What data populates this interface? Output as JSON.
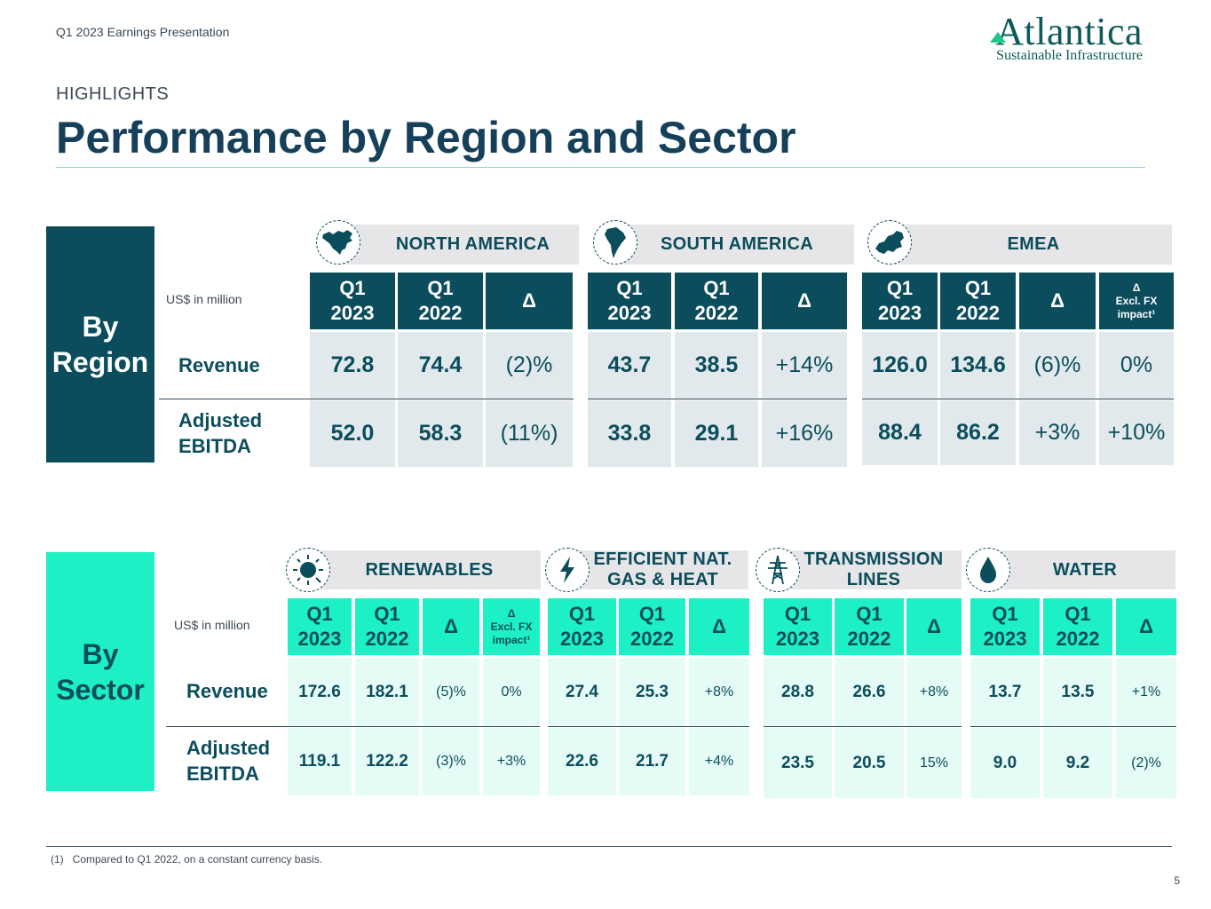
{
  "header": {
    "doc_label": "Q1 2023 Earnings Presentation",
    "logo_name": "Atlantica",
    "logo_tagline": "Sustainable Infrastructure",
    "kicker": "HIGHLIGHTS",
    "title": "Performance by Region and Sector"
  },
  "labels": {
    "by_region_1": "By",
    "by_region_2": "Region",
    "by_sector_1": "By",
    "by_sector_2": "Sector",
    "units": "US$ in million",
    "revenue": "Revenue",
    "adj_1": "Adjusted",
    "adj_2": "EBITDA",
    "q1": "Q1",
    "y2023": "2023",
    "y2022": "2022",
    "delta": "Δ",
    "excl_1": "Excl. FX",
    "excl_2": "impact¹"
  },
  "regions": {
    "north_america": {
      "name": "NORTH AMERICA",
      "rev": [
        "72.8",
        "74.4",
        "(2)%"
      ],
      "ebitda": [
        "52.0",
        "58.3",
        "(11%)"
      ]
    },
    "south_america": {
      "name": "SOUTH AMERICA",
      "rev": [
        "43.7",
        "38.5",
        "+14%"
      ],
      "ebitda": [
        "33.8",
        "29.1",
        "+16%"
      ]
    },
    "emea": {
      "name": "EMEA",
      "rev": [
        "126.0",
        "134.6",
        "(6)%",
        "0%"
      ],
      "ebitda": [
        "88.4",
        "86.2",
        "+3%",
        "+10%"
      ]
    }
  },
  "sectors": {
    "renewables": {
      "name": "RENEWABLES",
      "rev": [
        "172.6",
        "182.1",
        "(5)%",
        "0%"
      ],
      "ebitda": [
        "119.1",
        "122.2",
        "(3)%",
        "+3%"
      ]
    },
    "gas": {
      "name_1": "EFFICIENT NAT.",
      "name_2": "GAS & HEAT",
      "rev": [
        "27.4",
        "25.3",
        "+8%"
      ],
      "ebitda": [
        "22.6",
        "21.7",
        "+4%"
      ]
    },
    "transmission": {
      "name_1": "TRANSMISSION",
      "name_2": "LINES",
      "rev": [
        "28.8",
        "26.6",
        "+8%"
      ],
      "ebitda": [
        "23.5",
        "20.5",
        "15%"
      ]
    },
    "water": {
      "name": "WATER",
      "rev": [
        "13.7",
        "13.5",
        "+1%"
      ],
      "ebitda": [
        "9.0",
        "9.2",
        "(2)%"
      ]
    }
  },
  "footer": {
    "footnote": "(1)   Compared to Q1 2022, on a constant currency basis.",
    "page": "5"
  },
  "colors": {
    "dark_teal": "#0b4d5c",
    "bright_teal": "#1cf0c4",
    "header_band": "#e6e6e8"
  },
  "icons": [
    "north-america-map-icon",
    "south-america-map-icon",
    "europe-map-icon",
    "sun-icon",
    "lightning-icon",
    "transmission-tower-icon",
    "water-drop-icon"
  ]
}
